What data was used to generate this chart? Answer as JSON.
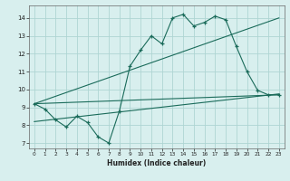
{
  "xlabel": "Humidex (Indice chaleur)",
  "bg_color": "#d8efee",
  "grid_color": "#afd5d3",
  "line_color": "#1a6b5a",
  "xlim": [
    -0.5,
    23.5
  ],
  "ylim": [
    6.7,
    14.7
  ],
  "yticks": [
    7,
    8,
    9,
    10,
    11,
    12,
    13,
    14
  ],
  "xticks": [
    0,
    1,
    2,
    3,
    4,
    5,
    6,
    7,
    8,
    9,
    10,
    11,
    12,
    13,
    14,
    15,
    16,
    17,
    18,
    19,
    20,
    21,
    22,
    23
  ],
  "line1_x": [
    0,
    1,
    2,
    3,
    4,
    5,
    6,
    7,
    8,
    9,
    10,
    11,
    12,
    13,
    14,
    15,
    16,
    17,
    18,
    19,
    20,
    21,
    22,
    23
  ],
  "line1_y": [
    9.2,
    8.9,
    8.3,
    7.9,
    8.5,
    8.15,
    7.35,
    7.0,
    8.8,
    11.3,
    12.2,
    13.0,
    12.55,
    14.0,
    14.2,
    13.55,
    13.75,
    14.1,
    13.9,
    12.4,
    11.0,
    9.95,
    9.7,
    9.7
  ],
  "line2_x": [
    0,
    23
  ],
  "line2_y": [
    9.2,
    14.0
  ],
  "line3_x": [
    0,
    23
  ],
  "line3_y": [
    8.2,
    9.75
  ],
  "line4_x": [
    0,
    23
  ],
  "line4_y": [
    9.2,
    9.7
  ]
}
